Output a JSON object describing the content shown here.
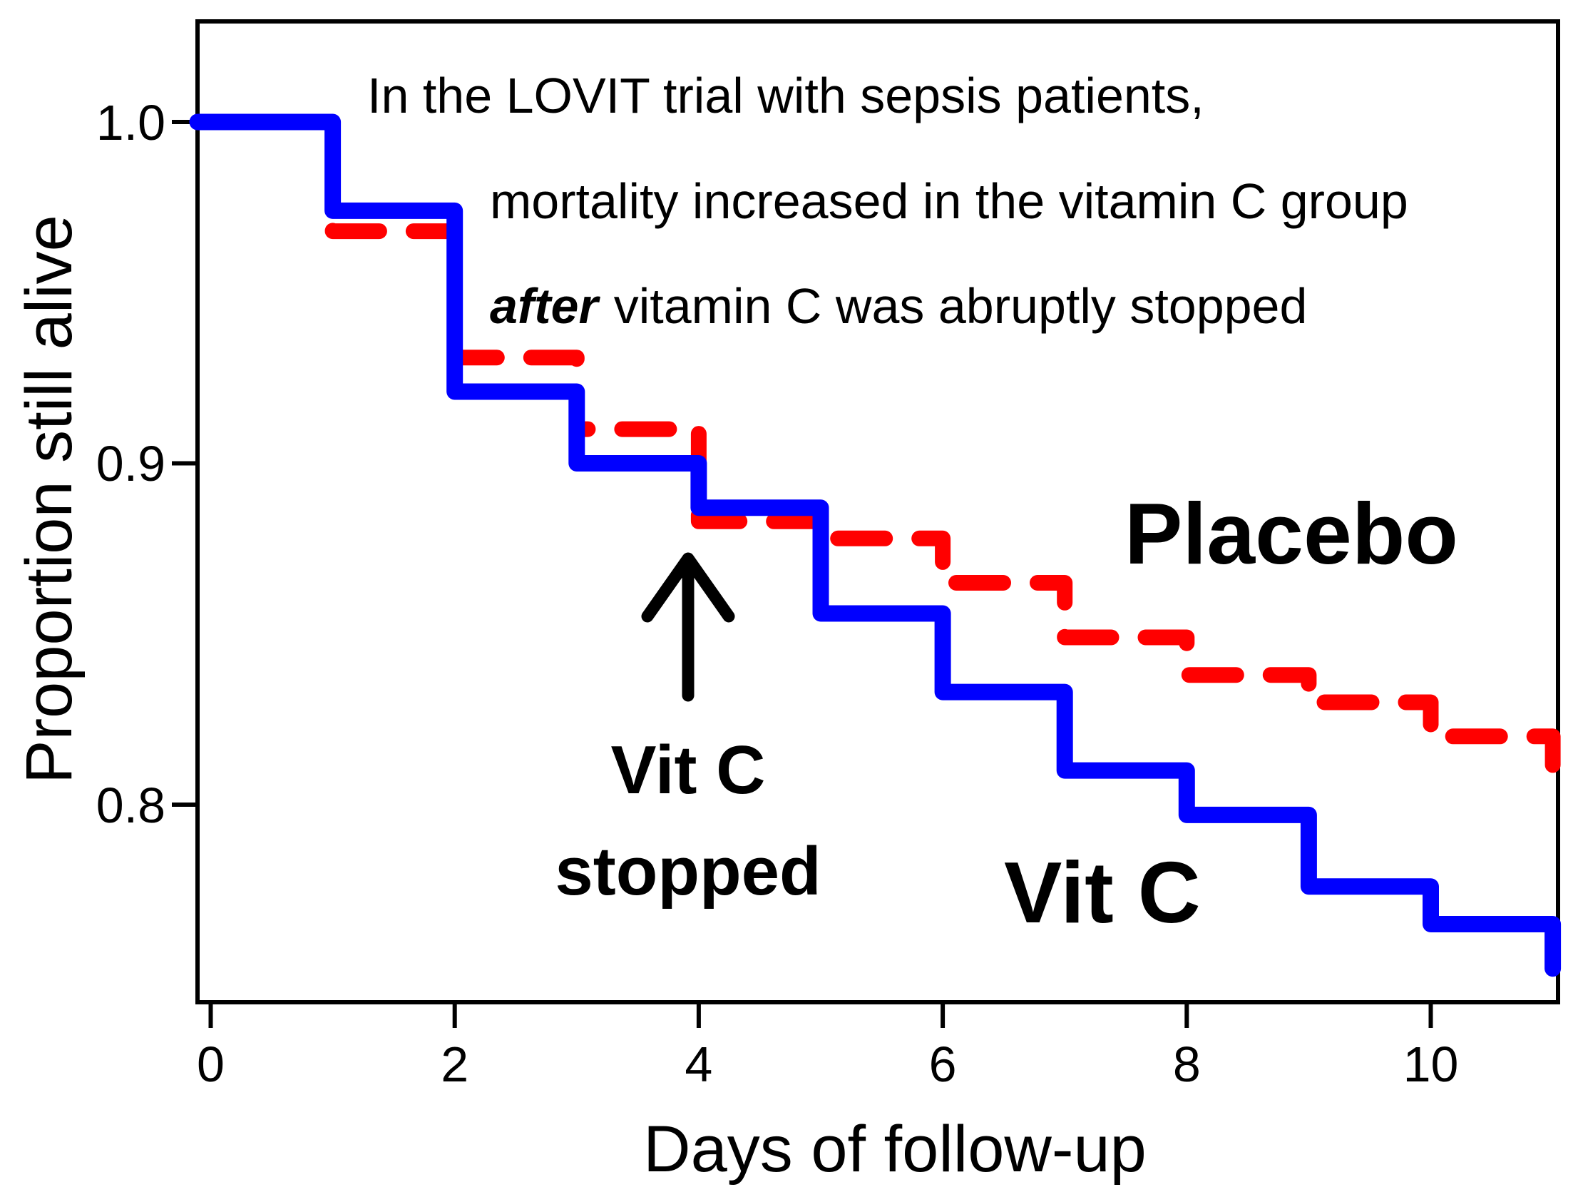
{
  "figure": {
    "background": "#FFFFFF",
    "annotation": {
      "line1": "In the LOVIT trial with sepsis patients,",
      "line2": "mortality increased in the vitamin C group",
      "line3_em": "after",
      "line3_rest": "vitamin C was abruptly stopped"
    },
    "arrow_label": {
      "line1": "Vit C",
      "line2": "stopped"
    },
    "colors": {
      "vitc_blue": "#0000FF",
      "placebo_red": "#FF0000",
      "text_black": "#000000"
    }
  },
  "chart_data": {
    "type": "line",
    "subtype": "kaplan-meier-step",
    "title": "In the LOVIT trial with sepsis patients, mortality increased in the vitamin C group after vitamin C was abruptly stopped",
    "xlabel": "Days of follow-up",
    "ylabel": "Proportion still alive",
    "xlim": [
      0,
      11
    ],
    "ylim": [
      0.74,
      1.02
    ],
    "grid": false,
    "legend_position": "labels-on-chart",
    "x_ticks": [
      0,
      2,
      4,
      6,
      8,
      10
    ],
    "x_tick_labels": [
      "0",
      "2",
      "4",
      "6",
      "8",
      "10"
    ],
    "y_ticks": [
      1.0,
      0.9,
      0.8
    ],
    "y_tick_labels": [
      "1.0",
      "0.9",
      "0.8"
    ],
    "annotations": [
      {
        "text": "Vit C stopped",
        "arrow_points_to_day": 4
      }
    ],
    "series": [
      {
        "name": "Placebo",
        "color": "#FF0000",
        "style": "dashed",
        "x": [
          0,
          1,
          2,
          3,
          4,
          5,
          6,
          7,
          8,
          9,
          10,
          11
        ],
        "y": [
          1.0,
          0.968,
          0.931,
          0.91,
          0.883,
          0.878,
          0.865,
          0.849,
          0.838,
          0.83,
          0.82,
          0.808
        ]
      },
      {
        "name": "Vit C",
        "color": "#0000FF",
        "style": "solid",
        "x": [
          0,
          1,
          2,
          3,
          4,
          5,
          6,
          7,
          8,
          9,
          10,
          11
        ],
        "y": [
          1.0,
          0.974,
          0.921,
          0.9,
          0.887,
          0.856,
          0.833,
          0.81,
          0.797,
          0.776,
          0.765,
          0.752
        ]
      }
    ]
  }
}
